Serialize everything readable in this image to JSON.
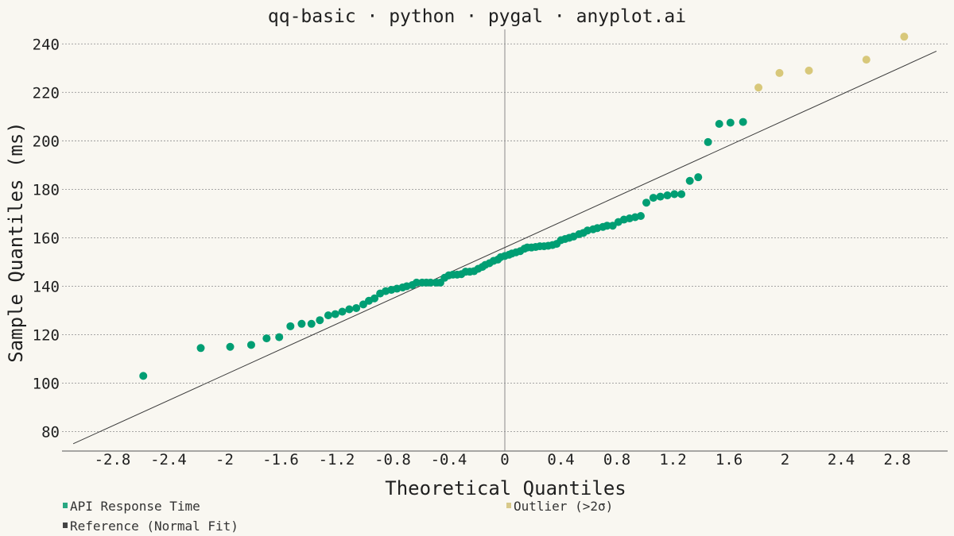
{
  "chart_data": {
    "type": "scatter",
    "title": "qq-basic · python · pygal · anyplot.ai",
    "xlabel": "Theoretical Quantiles",
    "ylabel": "Sample Quantiles (ms)",
    "x_ticks": [
      "-2.8",
      "-2.4",
      "-2",
      "-1.6",
      "-1.2",
      "-0.8",
      "-0.4",
      "0",
      "0.4",
      "0.8",
      "1.2",
      "1.6",
      "2",
      "2.4",
      "2.8"
    ],
    "y_ticks": [
      "80",
      "100",
      "120",
      "140",
      "160",
      "180",
      "200",
      "220",
      "240"
    ],
    "xlim": [
      -3.16,
      3.16
    ],
    "ylim": [
      72,
      246
    ],
    "grid": "horizontal dashed",
    "legend_position": "bottom",
    "series": [
      {
        "name": "API Response Time",
        "color": "#009e73",
        "points": [
          [
            -2.58,
            103
          ],
          [
            -2.17,
            114.5
          ],
          [
            -1.96,
            115
          ],
          [
            -1.81,
            115.8
          ],
          [
            -1.7,
            118.5
          ],
          [
            -1.61,
            119
          ],
          [
            -1.53,
            123.5
          ],
          [
            -1.45,
            124.5
          ],
          [
            -1.38,
            124.5
          ],
          [
            -1.32,
            126
          ],
          [
            -1.26,
            128
          ],
          [
            -1.21,
            128.5
          ],
          [
            -1.16,
            129.5
          ],
          [
            -1.11,
            130.5
          ],
          [
            -1.06,
            131
          ],
          [
            -1.01,
            132.5
          ],
          [
            -0.97,
            134
          ],
          [
            -0.93,
            135
          ],
          [
            -0.89,
            137
          ],
          [
            -0.85,
            138
          ],
          [
            -0.81,
            138.5
          ],
          [
            -0.77,
            139
          ],
          [
            -0.73,
            139.5
          ],
          [
            -0.7,
            140
          ],
          [
            -0.66,
            140.5
          ],
          [
            -0.63,
            141.5
          ],
          [
            -0.59,
            141.5
          ],
          [
            -0.56,
            141.5
          ],
          [
            -0.53,
            141.5
          ],
          [
            -0.49,
            141.5
          ],
          [
            -0.46,
            141.5
          ],
          [
            -0.43,
            143.5
          ],
          [
            -0.4,
            144.5
          ],
          [
            -0.37,
            144.8
          ],
          [
            -0.34,
            144.8
          ],
          [
            -0.31,
            145
          ],
          [
            -0.28,
            146
          ],
          [
            -0.25,
            146
          ],
          [
            -0.22,
            146.2
          ],
          [
            -0.19,
            147.2
          ],
          [
            -0.16,
            148
          ],
          [
            -0.14,
            148.8
          ],
          [
            -0.11,
            149.5
          ],
          [
            -0.08,
            150.5
          ],
          [
            -0.05,
            151
          ],
          [
            -0.03,
            152
          ],
          [
            0.0,
            152.5
          ],
          [
            0.03,
            153
          ],
          [
            0.05,
            153.5
          ],
          [
            0.08,
            154
          ],
          [
            0.11,
            154.5
          ],
          [
            0.14,
            155.5
          ],
          [
            0.16,
            156
          ],
          [
            0.19,
            156
          ],
          [
            0.22,
            156.2
          ],
          [
            0.25,
            156.5
          ],
          [
            0.28,
            156.5
          ],
          [
            0.31,
            156.7
          ],
          [
            0.34,
            157
          ],
          [
            0.37,
            157.5
          ],
          [
            0.4,
            159
          ],
          [
            0.43,
            159.5
          ],
          [
            0.46,
            160
          ],
          [
            0.49,
            160.5
          ],
          [
            0.53,
            161.5
          ],
          [
            0.56,
            162
          ],
          [
            0.59,
            163
          ],
          [
            0.63,
            163.5
          ],
          [
            0.66,
            164
          ],
          [
            0.7,
            164.5
          ],
          [
            0.73,
            165
          ],
          [
            0.77,
            165
          ],
          [
            0.81,
            166.5
          ],
          [
            0.85,
            167.5
          ],
          [
            0.89,
            168
          ],
          [
            0.93,
            168.5
          ],
          [
            0.97,
            169
          ],
          [
            1.01,
            174.5
          ],
          [
            1.06,
            176.5
          ],
          [
            1.11,
            177
          ],
          [
            1.16,
            177.5
          ],
          [
            1.21,
            178
          ],
          [
            1.26,
            178
          ],
          [
            1.32,
            183.5
          ],
          [
            1.38,
            185
          ],
          [
            1.45,
            199.5
          ],
          [
            1.53,
            207
          ],
          [
            1.61,
            207.5
          ],
          [
            1.7,
            207.8
          ]
        ]
      },
      {
        "name": "Outlier (>2σ)",
        "color": "#d8c87a",
        "points": [
          [
            1.81,
            222
          ],
          [
            1.96,
            228
          ],
          [
            2.17,
            229
          ],
          [
            2.58,
            233.5
          ],
          [
            2.85,
            243
          ]
        ]
      }
    ],
    "reference_line": {
      "name": "Reference (Normal Fit)",
      "color": "#3a3a3a",
      "from": [
        -3.08,
        75
      ],
      "to": [
        3.08,
        237
      ]
    }
  },
  "legend": {
    "items": [
      {
        "label": "API Response Time",
        "color": "#2aa882"
      },
      {
        "label": "Outlier (>2σ)",
        "color": "#d8c98a"
      },
      {
        "label": "Reference (Normal Fit)",
        "color": "#444444"
      }
    ]
  }
}
